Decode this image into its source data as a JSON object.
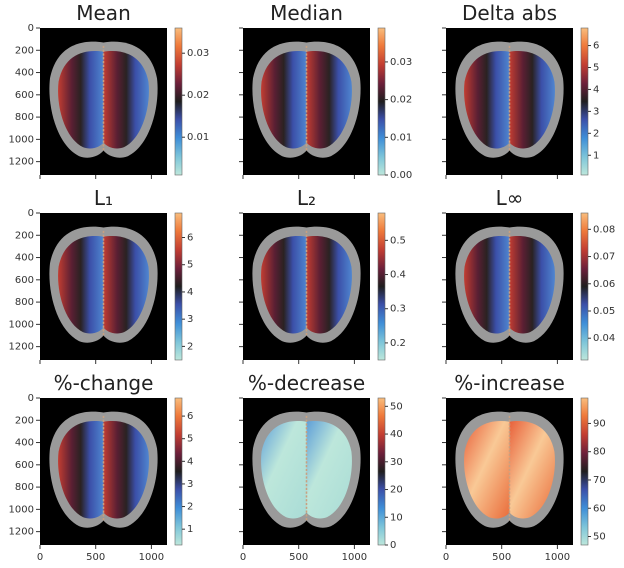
{
  "chart_data": [
    {
      "type": "image",
      "title": "Mean",
      "xlim": [
        0,
        1140
      ],
      "ylim": [
        1320,
        0
      ],
      "xticks": [
        0,
        500,
        1000
      ],
      "yticks": [
        0,
        200,
        400,
        600,
        800,
        1000,
        1200
      ],
      "show_xticklabels": false,
      "show_yticklabels": true,
      "colormap": "icefire",
      "clim": [
        0.001,
        0.036
      ],
      "cticks": [
        0.01,
        0.02,
        0.03
      ]
    },
    {
      "type": "image",
      "title": "Median",
      "xlim": [
        0,
        1140
      ],
      "ylim": [
        1320,
        0
      ],
      "xticks": [
        0,
        500,
        1000
      ],
      "yticks": [
        0,
        200,
        400,
        600,
        800,
        1000,
        1200
      ],
      "show_xticklabels": false,
      "show_yticklabels": false,
      "colormap": "icefire",
      "clim": [
        0,
        0.039
      ],
      "cticks": [
        {
          "value": 0,
          "label": "0.00"
        },
        0.01,
        0.02,
        0.03
      ]
    },
    {
      "type": "image",
      "title": "Delta abs",
      "xlim": [
        0,
        1140
      ],
      "ylim": [
        1320,
        0
      ],
      "xticks": [
        0,
        500,
        1000
      ],
      "yticks": [
        0,
        200,
        400,
        600,
        800,
        1000,
        1200
      ],
      "show_xticklabels": false,
      "show_yticklabels": false,
      "colormap": "icefire",
      "clim": [
        0.1,
        6.8
      ],
      "cticks": [
        1,
        2,
        3,
        4,
        5,
        6
      ]
    },
    {
      "type": "image",
      "title": "L₁",
      "xlim": [
        0,
        1140
      ],
      "ylim": [
        1320,
        0
      ],
      "xticks": [
        0,
        500,
        1000
      ],
      "yticks": [
        0,
        200,
        400,
        600,
        800,
        1000,
        1200
      ],
      "show_xticklabels": false,
      "show_yticklabels": true,
      "colormap": "icefire",
      "clim": [
        1.5,
        6.9
      ],
      "cticks": [
        2,
        3,
        4,
        5,
        6
      ]
    },
    {
      "type": "image",
      "title": "L₂",
      "xlim": [
        0,
        1140
      ],
      "ylim": [
        1320,
        0
      ],
      "xticks": [
        0,
        500,
        1000
      ],
      "yticks": [
        0,
        200,
        400,
        600,
        800,
        1000,
        1200
      ],
      "show_xticklabels": false,
      "show_yticklabels": false,
      "colormap": "icefire",
      "clim": [
        0.15,
        0.58
      ],
      "cticks": [
        0.2,
        0.3,
        0.4,
        0.5
      ]
    },
    {
      "type": "image",
      "title": "L∞",
      "xlim": [
        0,
        1140
      ],
      "ylim": [
        1320,
        0
      ],
      "xticks": [
        0,
        500,
        1000
      ],
      "yticks": [
        0,
        200,
        400,
        600,
        800,
        1000,
        1200
      ],
      "show_xticklabels": false,
      "show_yticklabels": false,
      "colormap": "icefire",
      "clim": [
        0.032,
        0.086
      ],
      "cticks": [
        0.04,
        0.05,
        0.06,
        0.07,
        0.08
      ]
    },
    {
      "type": "image",
      "title": "%-change",
      "xlim": [
        0,
        1140
      ],
      "ylim": [
        1320,
        0
      ],
      "xticks": [
        0,
        500,
        1000
      ],
      "yticks": [
        0,
        200,
        400,
        600,
        800,
        1000,
        1200
      ],
      "show_xticklabels": true,
      "show_yticklabels": true,
      "colormap": "icefire",
      "clim": [
        0.3,
        6.8
      ],
      "cticks": [
        1,
        2,
        3,
        4,
        5,
        6
      ]
    },
    {
      "type": "image",
      "title": "%-decrease",
      "xlim": [
        0,
        1140
      ],
      "ylim": [
        1320,
        0
      ],
      "xticks": [
        0,
        500,
        1000
      ],
      "yticks": [
        0,
        200,
        400,
        600,
        800,
        1000,
        1200
      ],
      "show_xticklabels": true,
      "show_yticklabels": false,
      "colormap": "icefire",
      "clim": [
        0,
        53
      ],
      "cticks": [
        0,
        10,
        20,
        30,
        40,
        50
      ]
    },
    {
      "type": "image",
      "title": "%-increase",
      "xlim": [
        0,
        1140
      ],
      "ylim": [
        1320,
        0
      ],
      "xticks": [
        0,
        500,
        1000
      ],
      "yticks": [
        0,
        200,
        400,
        600,
        800,
        1000,
        1200
      ],
      "show_xticklabels": true,
      "show_yticklabels": false,
      "colormap": "icefire",
      "clim": [
        47,
        99
      ],
      "cticks": [
        50,
        60,
        70,
        80,
        90
      ]
    }
  ]
}
